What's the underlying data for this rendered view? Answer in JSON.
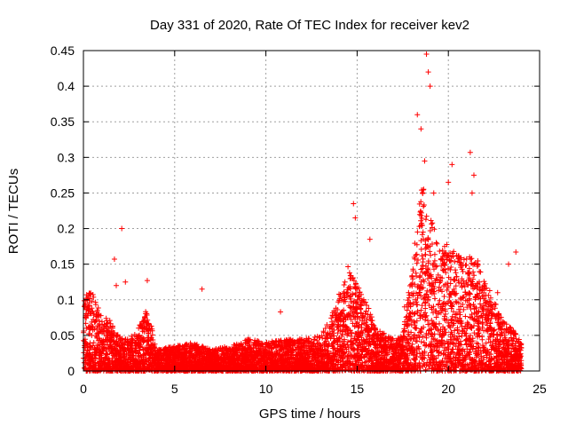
{
  "chart_data": {
    "type": "scatter",
    "title": "Day 331 of 2020, Rate Of TEC Index for receiver kev2",
    "xlabel": "GPS time / hours",
    "ylabel": "ROTI / TECUs",
    "xlim": [
      0,
      25
    ],
    "ylim": [
      0,
      0.45
    ],
    "x_ticks": [
      "0",
      "5",
      "10",
      "15",
      "20",
      "25"
    ],
    "y_ticks": [
      "0",
      "0.05",
      "0.1",
      "0.15",
      "0.2",
      "0.25",
      "0.3",
      "0.35",
      "0.4",
      "0.45"
    ],
    "grid": true,
    "marker": "+",
    "series": [
      {
        "name": "ROTI",
        "color": "#ff0000",
        "envelope": [
          {
            "x": 0.0,
            "low": 0.0,
            "high": 0.11
          },
          {
            "x": 0.5,
            "low": 0.0,
            "high": 0.11
          },
          {
            "x": 1.0,
            "low": 0.0,
            "high": 0.08
          },
          {
            "x": 1.5,
            "low": 0.0,
            "high": 0.07
          },
          {
            "x": 2.0,
            "low": 0.0,
            "high": 0.05
          },
          {
            "x": 2.5,
            "low": 0.0,
            "high": 0.045
          },
          {
            "x": 3.0,
            "low": 0.0,
            "high": 0.06
          },
          {
            "x": 3.5,
            "low": 0.0,
            "high": 0.09
          },
          {
            "x": 4.0,
            "low": 0.0,
            "high": 0.03
          },
          {
            "x": 5.0,
            "low": 0.0,
            "high": 0.035
          },
          {
            "x": 6.0,
            "low": 0.0,
            "high": 0.04
          },
          {
            "x": 7.0,
            "low": 0.0,
            "high": 0.03
          },
          {
            "x": 8.0,
            "low": 0.0,
            "high": 0.035
          },
          {
            "x": 9.0,
            "low": 0.0,
            "high": 0.045
          },
          {
            "x": 10.0,
            "low": 0.0,
            "high": 0.04
          },
          {
            "x": 11.0,
            "low": 0.0,
            "high": 0.045
          },
          {
            "x": 12.0,
            "low": 0.0,
            "high": 0.045
          },
          {
            "x": 13.0,
            "low": 0.0,
            "high": 0.05
          },
          {
            "x": 13.8,
            "low": 0.0,
            "high": 0.09
          },
          {
            "x": 14.5,
            "low": 0.0,
            "high": 0.15
          },
          {
            "x": 15.0,
            "low": 0.0,
            "high": 0.12
          },
          {
            "x": 15.5,
            "low": 0.0,
            "high": 0.1
          },
          {
            "x": 16.0,
            "low": 0.0,
            "high": 0.06
          },
          {
            "x": 17.0,
            "low": 0.0,
            "high": 0.045
          },
          {
            "x": 17.5,
            "low": 0.0,
            "high": 0.05
          },
          {
            "x": 18.0,
            "low": 0.0,
            "high": 0.15
          },
          {
            "x": 18.5,
            "low": 0.0,
            "high": 0.28
          },
          {
            "x": 19.0,
            "low": 0.0,
            "high": 0.22
          },
          {
            "x": 19.5,
            "low": 0.0,
            "high": 0.18
          },
          {
            "x": 20.0,
            "low": 0.0,
            "high": 0.18
          },
          {
            "x": 20.5,
            "low": 0.0,
            "high": 0.17
          },
          {
            "x": 21.0,
            "low": 0.0,
            "high": 0.16
          },
          {
            "x": 21.5,
            "low": 0.0,
            "high": 0.17
          },
          {
            "x": 22.0,
            "low": 0.0,
            "high": 0.13
          },
          {
            "x": 22.5,
            "low": 0.0,
            "high": 0.1
          },
          {
            "x": 23.0,
            "low": 0.0,
            "high": 0.07
          },
          {
            "x": 23.5,
            "low": 0.0,
            "high": 0.06
          },
          {
            "x": 24.0,
            "low": 0.0,
            "high": 0.04
          }
        ],
        "outliers": [
          {
            "x": 1.7,
            "y": 0.157
          },
          {
            "x": 1.8,
            "y": 0.12
          },
          {
            "x": 2.1,
            "y": 0.2
          },
          {
            "x": 2.3,
            "y": 0.125
          },
          {
            "x": 3.5,
            "y": 0.127
          },
          {
            "x": 6.5,
            "y": 0.115
          },
          {
            "x": 10.8,
            "y": 0.083
          },
          {
            "x": 14.8,
            "y": 0.235
          },
          {
            "x": 14.9,
            "y": 0.215
          },
          {
            "x": 15.7,
            "y": 0.185
          },
          {
            "x": 17.6,
            "y": 0.09
          },
          {
            "x": 18.3,
            "y": 0.36
          },
          {
            "x": 18.5,
            "y": 0.34
          },
          {
            "x": 18.8,
            "y": 0.445
          },
          {
            "x": 18.9,
            "y": 0.42
          },
          {
            "x": 19.0,
            "y": 0.4
          },
          {
            "x": 18.7,
            "y": 0.295
          },
          {
            "x": 19.2,
            "y": 0.25
          },
          {
            "x": 20.2,
            "y": 0.29
          },
          {
            "x": 20.0,
            "y": 0.265
          },
          {
            "x": 21.2,
            "y": 0.307
          },
          {
            "x": 21.4,
            "y": 0.275
          },
          {
            "x": 21.3,
            "y": 0.25
          },
          {
            "x": 23.3,
            "y": 0.15
          },
          {
            "x": 23.7,
            "y": 0.167
          },
          {
            "x": 22.7,
            "y": 0.11
          }
        ]
      }
    ]
  }
}
